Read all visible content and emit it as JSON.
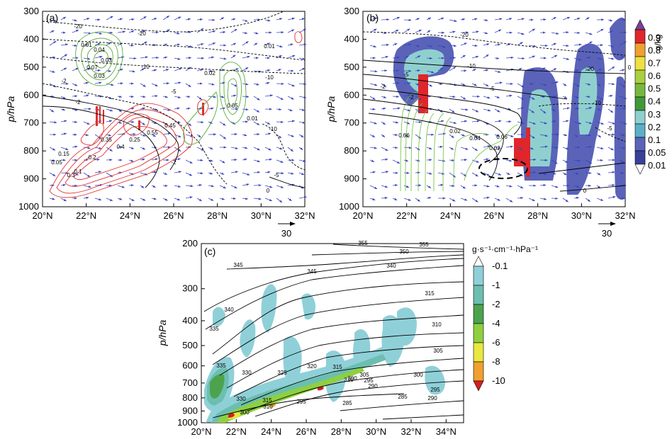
{
  "figure": {
    "panels": [
      {
        "label": "(a)",
        "ref_vector": "30"
      },
      {
        "label": "(b)",
        "ref_vector": "30"
      },
      {
        "label": "(c)"
      }
    ]
  },
  "chart_data": [
    {
      "type": "contour",
      "panel": "(a)",
      "ylabel": "p/hPa",
      "x_ticks": [
        "20°N",
        "22°N",
        "24°N",
        "26°N",
        "28°N",
        "30°N",
        "32°N"
      ],
      "y_ticks": [
        "300",
        "400",
        "500",
        "600",
        "700",
        "800",
        "900",
        "1000"
      ],
      "xlim": [
        20,
        32
      ],
      "ylim": [
        1000,
        300
      ],
      "contour_labels_black": [
        "-20",
        "-20",
        "-10",
        "-10",
        "-5",
        "-2",
        "-2",
        "-5",
        "-10",
        "-2",
        "0"
      ],
      "contour_labels_green": [
        "0.01",
        "0.04",
        "0.07",
        "0.03",
        "0.01",
        "0.02",
        "0.05",
        "0.01",
        "0.03"
      ],
      "contour_labels_red": [
        "0.3",
        "0.35",
        "0.4",
        "0.25",
        "0.15",
        "0.2",
        "0.05",
        "0.1",
        "0.45",
        "0.55"
      ],
      "ref_vector": "30"
    },
    {
      "type": "contour",
      "panel": "(b)",
      "ylabel": "p/hPa",
      "x_ticks": [
        "20°N",
        "22°N",
        "24°N",
        "26°N",
        "28°N",
        "30°N",
        "32°N"
      ],
      "y_ticks": [
        "300",
        "400",
        "500",
        "600",
        "700",
        "800",
        "900",
        "1000"
      ],
      "xlim": [
        20,
        32
      ],
      "ylim": [
        1000,
        300
      ],
      "colorbar": {
        "unit": "g/kg",
        "levels": [
          "0.9",
          "0.8",
          "0.7",
          "0.6",
          "0.5",
          "0.4",
          "0.3",
          "0.2",
          "0.1",
          "0.05",
          "0.01"
        ],
        "colors": [
          "#7a3fa0",
          "#e0262a",
          "#f0a030",
          "#f0e040",
          "#a8d040",
          "#78b840",
          "#3f9a3a",
          "#8fd0cf",
          "#5bb0c8",
          "#5a63b8",
          "#3a3f9a",
          "#ffffff"
        ]
      },
      "contour_labels_black": [
        "-20",
        "-20",
        "-10",
        "-10",
        "-5",
        "-5",
        "-2",
        "-2",
        "0",
        "-5",
        "0"
      ],
      "contour_labels_green": [
        "0.02",
        "0.04",
        "0.06",
        "0.02",
        "0.06"
      ],
      "ref_vector": "30"
    },
    {
      "type": "contour",
      "panel": "(c)",
      "ylabel": "p/hPa",
      "x_ticks": [
        "20°N",
        "22°N",
        "24°N",
        "26°N",
        "28°N",
        "30°N",
        "32°N",
        "34°N"
      ],
      "y_ticks": [
        "200",
        "300",
        "400",
        "500",
        "600",
        "700",
        "800",
        "900",
        "1000"
      ],
      "xlim": [
        20,
        35
      ],
      "ylim": [
        1000,
        200
      ],
      "colorbar": {
        "unit": "g·s⁻¹·cm⁻¹·hPa⁻¹",
        "levels": [
          "-0.1",
          "-1",
          "-2",
          "-4",
          "-6",
          "-8",
          "-10"
        ],
        "colors": [
          "#ffffff",
          "#8fd0d8",
          "#6cbfb0",
          "#4da34d",
          "#8fcf40",
          "#e8e840",
          "#f0a030",
          "#d42020"
        ]
      },
      "contour_labels": [
        "355",
        "350",
        "355",
        "345",
        "345",
        "340",
        "340",
        "315",
        "310",
        "305",
        "300",
        "295",
        "290",
        "285",
        "285",
        "290",
        "295",
        "300",
        "305",
        "310",
        "315",
        "320",
        "325",
        "330",
        "335",
        "335",
        "300",
        "295",
        "315",
        "310",
        "330"
      ]
    }
  ]
}
